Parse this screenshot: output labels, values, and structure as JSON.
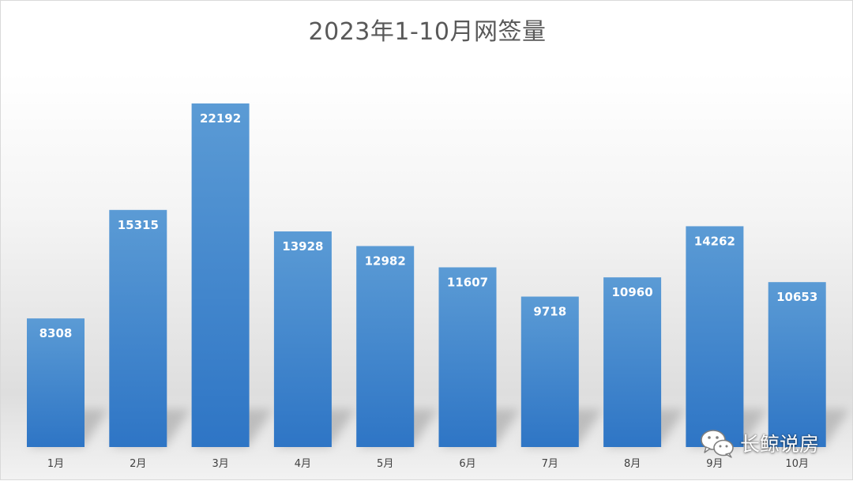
{
  "chart_data": {
    "type": "bar",
    "title": "2023年1-10月网签量",
    "categories": [
      "1月",
      "2月",
      "3月",
      "4月",
      "5月",
      "6月",
      "7月",
      "8月",
      "9月",
      "10月"
    ],
    "series": [
      {
        "values": [
          8308,
          15315,
          22192,
          13928,
          12982,
          11607,
          9718,
          10960,
          14262,
          10653
        ]
      }
    ],
    "ylim": [
      0,
      22192
    ],
    "grid": false,
    "legend": "none",
    "colors": {
      "bar_top": "#5b9bd5",
      "bar_bottom": "#2e75c5",
      "label": "#ffffff",
      "axis_text": "#404040",
      "title": "#595959"
    }
  },
  "watermark": {
    "icon": "wechat-icon",
    "text": "长鲸说房"
  }
}
